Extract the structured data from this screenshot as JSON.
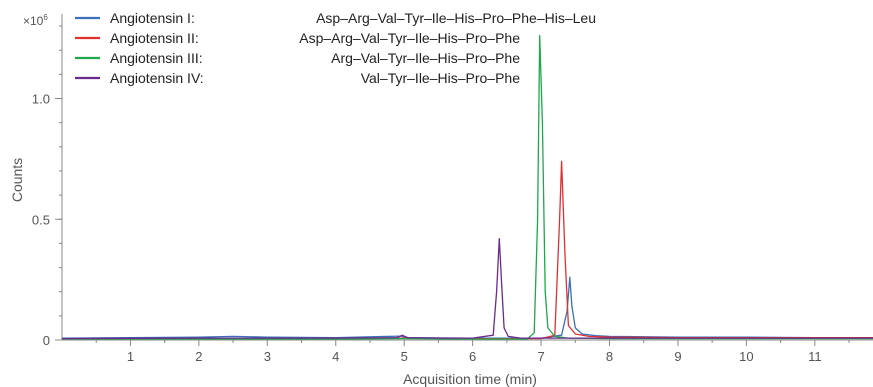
{
  "chart_data": {
    "type": "line",
    "title": "",
    "xlabel": "Acquisition time (min)",
    "ylabel": "Counts",
    "y_multiplier": {
      "base": "×10",
      "exponent": "6"
    },
    "xlim": [
      0,
      11.85
    ],
    "ylim": [
      0,
      1.35
    ],
    "x_ticks": [
      1,
      2,
      3,
      4,
      5,
      6,
      7,
      8,
      9,
      10,
      11
    ],
    "x_tick_labels": [
      "1",
      "2",
      "3",
      "4",
      "5",
      "6",
      "7",
      "8",
      "9",
      "10",
      "11"
    ],
    "y_ticks": [
      0,
      0.5,
      1.0
    ],
    "y_tick_labels": [
      "0",
      "0.5",
      "1.0"
    ],
    "legend_position": "top-left",
    "series": [
      {
        "name": "Angiotensin I:",
        "sequence": "Asp–Arg–Val–Tyr–Ile–His–Pro–Phe–His–Leu",
        "color": "#3b6fb6",
        "x": [
          0,
          1,
          2,
          2.5,
          3,
          4,
          4.95,
          5.05,
          6,
          7,
          7.3,
          7.38,
          7.42,
          7.45,
          7.5,
          7.6,
          7.8,
          8,
          9,
          10,
          11,
          11.85
        ],
        "y": [
          0.008,
          0.01,
          0.012,
          0.015,
          0.012,
          0.01,
          0.016,
          0.01,
          0.008,
          0.008,
          0.02,
          0.12,
          0.26,
          0.14,
          0.05,
          0.025,
          0.018,
          0.015,
          0.012,
          0.012,
          0.01,
          0.01
        ]
      },
      {
        "name": "Angiotensin II:",
        "sequence": "Asp–Arg–Val–Tyr–Ile–His–Pro–Phe",
        "color": "#e03030",
        "x": [
          0,
          1,
          2,
          3,
          4,
          5,
          6,
          7,
          7.2,
          7.27,
          7.3,
          7.35,
          7.4,
          7.5,
          7.7,
          8,
          9,
          10,
          11,
          11.85
        ],
        "y": [
          0.005,
          0.006,
          0.006,
          0.006,
          0.006,
          0.008,
          0.006,
          0.006,
          0.02,
          0.5,
          0.74,
          0.35,
          0.06,
          0.025,
          0.015,
          0.012,
          0.01,
          0.01,
          0.01,
          0.01
        ]
      },
      {
        "name": "Angiotensin III:",
        "sequence": "Arg–Val–Tyr–Ile–His–Pro–Phe",
        "color": "#1ea84a",
        "x": [
          0,
          1,
          2,
          3,
          4,
          5,
          6,
          6.8,
          6.9,
          6.95,
          6.98,
          7.02,
          7.06,
          7.1,
          7.2,
          7.4,
          8,
          9,
          10,
          11,
          11.85
        ],
        "y": [
          0.004,
          0.004,
          0.004,
          0.004,
          0.004,
          0.006,
          0.004,
          0.004,
          0.03,
          0.5,
          1.26,
          0.9,
          0.2,
          0.05,
          0.015,
          0.008,
          0.006,
          0.006,
          0.006,
          0.006,
          0.006
        ]
      },
      {
        "name": "Angiotensin IV:",
        "sequence": "Val–Tyr–Ile–His–Pro–Phe",
        "color": "#6a2a8c",
        "x": [
          0,
          1,
          2,
          3,
          4,
          4.9,
          4.97,
          5.05,
          5.5,
          6,
          6.3,
          6.35,
          6.39,
          6.42,
          6.46,
          6.52,
          6.7,
          7,
          8,
          9,
          10,
          11,
          11.85
        ],
        "y": [
          0.006,
          0.007,
          0.008,
          0.008,
          0.008,
          0.01,
          0.02,
          0.01,
          0.008,
          0.008,
          0.02,
          0.2,
          0.42,
          0.25,
          0.05,
          0.015,
          0.008,
          0.008,
          0.008,
          0.008,
          0.008,
          0.008,
          0.008
        ]
      }
    ]
  }
}
